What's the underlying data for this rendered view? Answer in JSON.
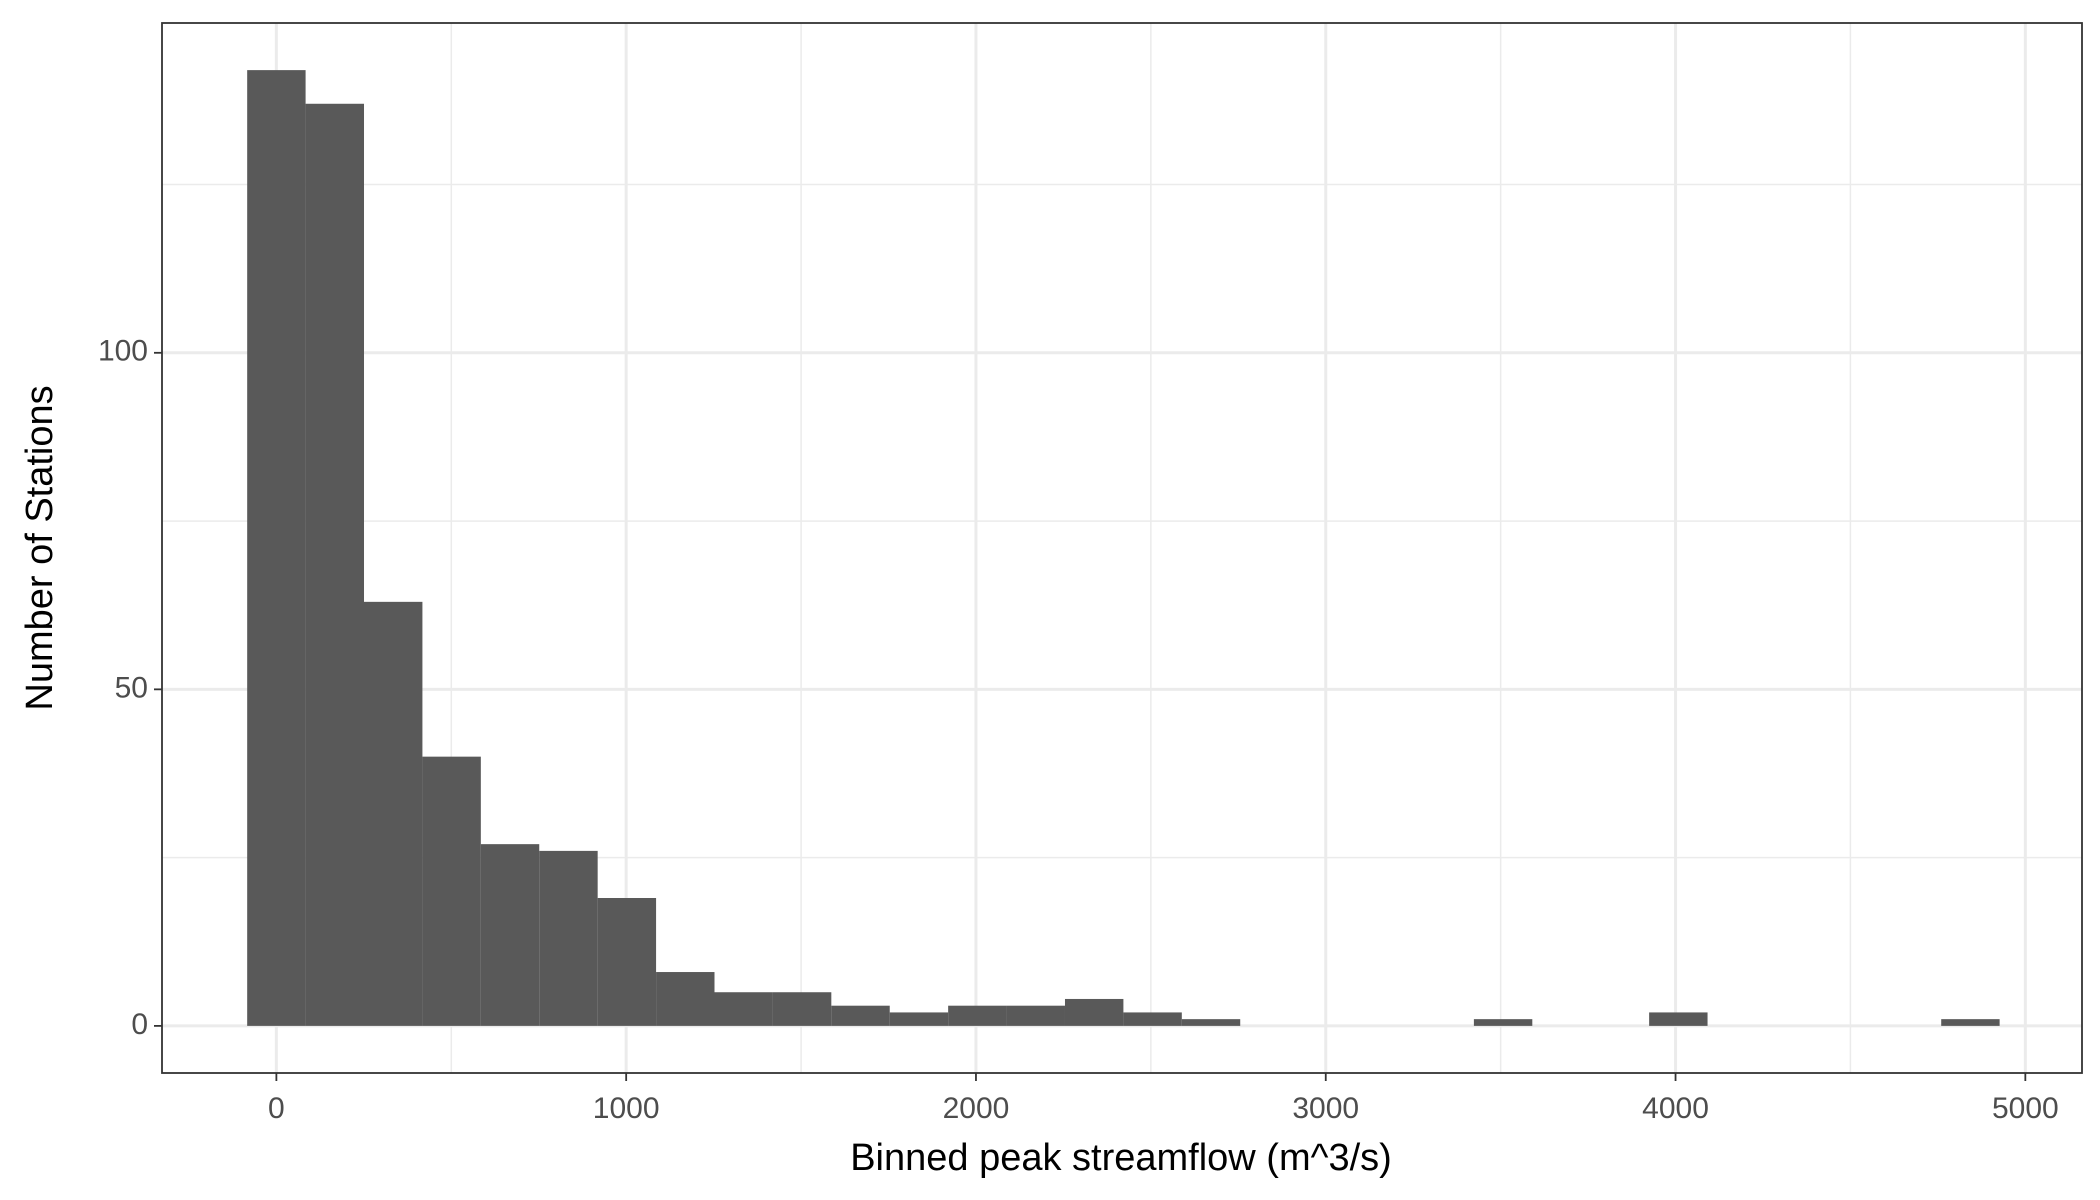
{
  "chart_data": {
    "type": "histogram",
    "x_label": "Binned peak streamflow (m^3/s)",
    "y_label": "Number of Stations",
    "bins": [
      -83.5,
      83.5,
      250.5,
      417.5,
      584.5,
      751.5,
      918.5,
      1085.5,
      1252.5,
      1419.5,
      1586.5,
      1753.5,
      1920.5,
      2087.5,
      2254.5,
      2421.5,
      2588.5,
      2755.5,
      2922.5,
      3089.5,
      3256.5,
      3423.5,
      3590.5,
      3757.5,
      3924.5,
      4091.5,
      4258.5,
      4425.5,
      4592.5,
      4759.5,
      4926.5
    ],
    "counts": [
      142,
      137,
      63,
      40,
      27,
      26,
      19,
      8,
      5,
      5,
      3,
      2,
      3,
      3,
      4,
      2,
      1,
      0,
      0,
      0,
      0,
      1,
      0,
      0,
      2,
      0,
      0,
      0,
      0,
      1
    ],
    "color": "#595959",
    "xlim": [
      -327,
      5162
    ],
    "ylim": [
      -7,
      149
    ],
    "xticks": [
      0,
      1000,
      2000,
      3000,
      4000,
      5000
    ],
    "yticks": [
      0,
      50,
      100
    ],
    "x_minor_grid": [
      500,
      1500,
      2500,
      3500,
      4500
    ],
    "y_minor_grid": [
      25,
      75,
      125
    ],
    "grid": true
  }
}
